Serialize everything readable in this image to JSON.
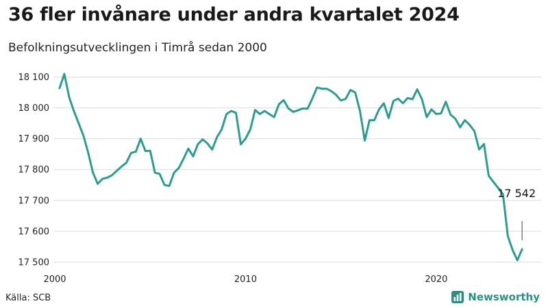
{
  "title": "36 fler invånare under andra kvartalet 2024",
  "subtitle": "Befolkningsutvecklingen i Timrå sedan 2000",
  "source": "Källa: SCB",
  "brand": {
    "name": "Newsworthy",
    "logo_icon": "bar-chart-icon"
  },
  "colors": {
    "line": "#2a9d8f",
    "grid": "#d9d9d9",
    "brand": "#2a8f84"
  },
  "chart_data": {
    "type": "line",
    "title": "36 fler invånare under andra kvartalet 2024",
    "subtitle": "Befolkningsutvecklingen i Timrå sedan 2000",
    "xlabel": "",
    "ylabel": "",
    "grid": true,
    "xlim": [
      2000,
      2025.5
    ],
    "ylim": [
      17480,
      18110
    ],
    "x_ticks": [
      2000,
      2010,
      2020
    ],
    "y_ticks": [
      17500,
      17600,
      17700,
      17800,
      17900,
      18000,
      18100
    ],
    "y_tick_labels": [
      "17 500",
      "17 600",
      "17 700",
      "17 800",
      "17 900",
      "18 000",
      "18 100"
    ],
    "annotation": {
      "x": 2024.5,
      "y": 17542,
      "label": "17 542"
    },
    "series": [
      {
        "x": [
          2000.25,
          2000.5,
          2000.75,
          2001.0,
          2001.25,
          2001.5,
          2001.75,
          2002.0,
          2002.25,
          2002.5,
          2002.75,
          2003.0,
          2003.25,
          2003.5,
          2003.75,
          2004.0,
          2004.25,
          2004.5,
          2004.75,
          2005.0,
          2005.25,
          2005.5,
          2005.75,
          2006.0,
          2006.25,
          2006.5,
          2006.75,
          2007.0,
          2007.25,
          2007.5,
          2007.75,
          2008.0,
          2008.25,
          2008.5,
          2008.75,
          2009.0,
          2009.25,
          2009.5,
          2009.75,
          2010.0,
          2010.25,
          2010.5,
          2010.75,
          2011.0,
          2011.25,
          2011.5,
          2011.75,
          2012.0,
          2012.25,
          2012.5,
          2012.75,
          2013.0,
          2013.25,
          2013.5,
          2013.75,
          2014.0,
          2014.25,
          2014.5,
          2014.75,
          2015.0,
          2015.25,
          2015.5,
          2015.75,
          2016.0,
          2016.25,
          2016.5,
          2016.75,
          2017.0,
          2017.25,
          2017.5,
          2017.75,
          2018.0,
          2018.25,
          2018.5,
          2018.75,
          2019.0,
          2019.25,
          2019.5,
          2019.75,
          2020.0,
          2020.25,
          2020.5,
          2020.75,
          2021.0,
          2021.25,
          2021.5,
          2021.75,
          2022.0,
          2022.25,
          2022.5,
          2022.75,
          2023.0,
          2023.25,
          2023.5,
          2023.75,
          2024.0,
          2024.25,
          2024.5
        ],
        "values": [
          18064,
          18110,
          18035,
          17990,
          17950,
          17910,
          17855,
          17790,
          17754,
          17770,
          17774,
          17782,
          17796,
          17810,
          17822,
          17854,
          17858,
          17900,
          17860,
          17861,
          17790,
          17786,
          17750,
          17747,
          17790,
          17805,
          17835,
          17868,
          17843,
          17882,
          17898,
          17885,
          17865,
          17905,
          17930,
          17980,
          17990,
          17984,
          17882,
          17900,
          17930,
          17993,
          17980,
          17990,
          17980,
          17970,
          18012,
          18025,
          17998,
          17987,
          17992,
          17998,
          17997,
          18030,
          18066,
          18062,
          18062,
          18054,
          18042,
          18024,
          18029,
          18058,
          18050,
          17990,
          17894,
          17960,
          17960,
          17995,
          18015,
          17967,
          18022,
          18030,
          18015,
          18032,
          18028,
          18060,
          18028,
          17970,
          17995,
          17980,
          17982,
          18020,
          17978,
          17965,
          17937,
          17960,
          17945,
          17925,
          17865,
          17883,
          17780,
          17760,
          17740,
          17720,
          17585,
          17540,
          17506,
          17542
        ]
      }
    ]
  }
}
